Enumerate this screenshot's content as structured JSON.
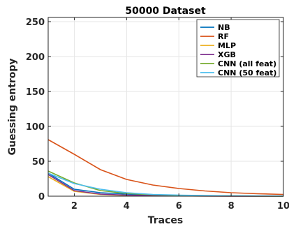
{
  "chart_data": {
    "type": "line",
    "title": "50000 Dataset",
    "xlabel": "Traces",
    "ylabel": "Guessing entropy",
    "xlim": [
      1,
      10
    ],
    "ylim": [
      0,
      256
    ],
    "xticks": [
      2,
      4,
      6,
      8,
      10
    ],
    "yticks": [
      0,
      50,
      100,
      150,
      200,
      250
    ],
    "grid": true,
    "legend_position": "top-right",
    "x": [
      1,
      2,
      3,
      4,
      5,
      6,
      7,
      8,
      9,
      10
    ],
    "series": [
      {
        "name": "NB",
        "color": "#0072BD",
        "values": [
          33,
          10,
          5,
          3,
          1.5,
          1,
          0.5,
          0.3,
          0.2,
          0.1
        ]
      },
      {
        "name": "RF",
        "color": "#D95319",
        "values": [
          81,
          60,
          38,
          24,
          16,
          11,
          7.5,
          5,
          3.5,
          2.5
        ]
      },
      {
        "name": "MLP",
        "color": "#EDB120",
        "values": [
          28,
          7,
          2.5,
          1,
          0.5,
          0.3,
          0.2,
          0.1,
          0,
          0
        ]
      },
      {
        "name": "XGB",
        "color": "#7E2F8E",
        "values": [
          31,
          8,
          3,
          1.5,
          0.8,
          0.4,
          0.2,
          0.1,
          0,
          0
        ]
      },
      {
        "name": "CNN (all feat)",
        "color": "#77AC30",
        "values": [
          36,
          19,
          8,
          4,
          2,
          1.2,
          0.7,
          0.4,
          0.2,
          0.1
        ]
      },
      {
        "name": "CNN (50 feat)",
        "color": "#4DBEEE",
        "values": [
          33,
          18,
          10,
          5,
          2.5,
          1.5,
          0.9,
          0.5,
          0.3,
          0.2
        ]
      }
    ]
  }
}
